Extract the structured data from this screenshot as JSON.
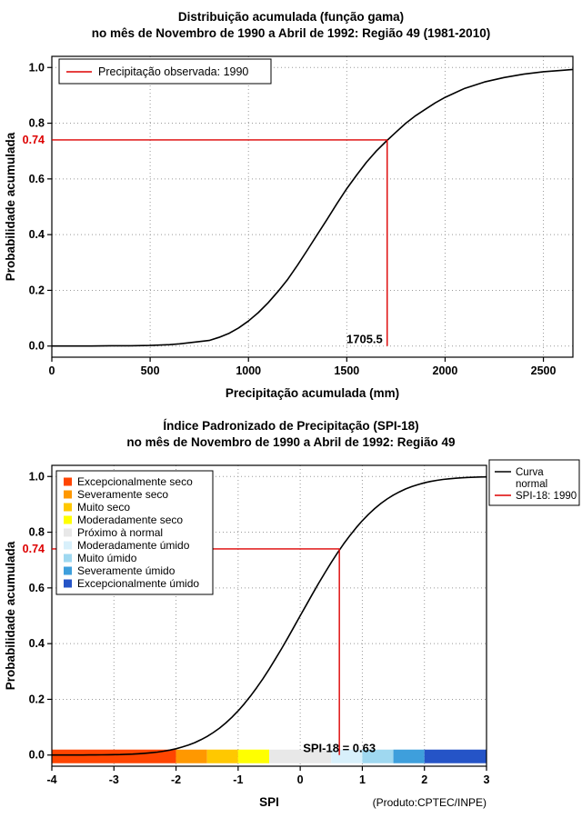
{
  "chart_data": [
    {
      "type": "line",
      "title": "Distribuição acumulada (função gama)",
      "subtitle": "no mês de Novembro de 1990 a Abril de 1992: Região 49 (1981-2010)",
      "xlabel": "Precipitação acumulada (mm)",
      "ylabel": "Probabilidade acumulada",
      "xlim": [
        0,
        2650
      ],
      "ylim": [
        0,
        1
      ],
      "xticks": [
        0,
        500,
        1000,
        1500,
        2000,
        2500
      ],
      "xtick_labels": [
        "0",
        "500",
        "1000",
        "1500",
        "2000",
        "2500"
      ],
      "yticks": [
        0,
        0.2,
        0.4,
        0.6,
        0.8,
        1
      ],
      "ytick_labels": [
        "0.0",
        "0.2",
        "0.4",
        "0.6",
        "0.8",
        "1.0"
      ],
      "grid": true,
      "legend": [
        {
          "label": "Precipitação observada: 1990",
          "color": "#dd0000"
        }
      ],
      "series": [
        {
          "name": "Distribuição gama acumulada",
          "color": "#000000",
          "x": [
            0,
            100,
            200,
            300,
            400,
            500,
            600,
            650,
            700,
            750,
            800,
            850,
            900,
            950,
            1000,
            1050,
            1100,
            1150,
            1200,
            1250,
            1300,
            1350,
            1400,
            1450,
            1500,
            1550,
            1600,
            1650,
            1700,
            1750,
            1800,
            1850,
            1900,
            1950,
            2000,
            2100,
            2200,
            2300,
            2400,
            2500,
            2600,
            2650
          ],
          "y": [
            0,
            0,
            0,
            0.001,
            0.001,
            0.002,
            0.005,
            0.008,
            0.012,
            0.016,
            0.02,
            0.031,
            0.045,
            0.065,
            0.09,
            0.12,
            0.155,
            0.196,
            0.24,
            0.291,
            0.345,
            0.4,
            0.455,
            0.511,
            0.565,
            0.614,
            0.66,
            0.7,
            0.735,
            0.768,
            0.8,
            0.827,
            0.85,
            0.873,
            0.893,
            0.925,
            0.948,
            0.964,
            0.976,
            0.985,
            0.99,
            0.993
          ]
        }
      ],
      "annotation": {
        "x_value": 1705.5,
        "y_value": 0.74,
        "x_label": "1705.5",
        "y_label": "0.74",
        "color": "#dd0000"
      }
    },
    {
      "type": "line",
      "title": "Índice Padronizado de Precipitação (SPI-18)",
      "subtitle": "no mês de Novembro de 1990 a Abril de 1992: Região 49",
      "xlabel": "SPI",
      "ylabel": "Probabilidade acumulada",
      "credit": "(Produto:CPTEC/INPE)",
      "xlim": [
        -4,
        3
      ],
      "ylim": [
        0,
        1
      ],
      "xticks": [
        -4,
        -3,
        -2,
        -1,
        0,
        1,
        2,
        3
      ],
      "xtick_labels": [
        "-4",
        "-3",
        "-2",
        "-1",
        "0",
        "1",
        "2",
        "3"
      ],
      "yticks": [
        0,
        0.2,
        0.4,
        0.6,
        0.8,
        1
      ],
      "ytick_labels": [
        "0.0",
        "0.2",
        "0.4",
        "0.6",
        "0.8",
        "1.0"
      ],
      "grid": true,
      "legend_right": [
        {
          "label_lines": [
            "Curva",
            "normal"
          ],
          "color": "#000000"
        },
        {
          "label_lines": [
            "SPI-18: 1990"
          ],
          "color": "#dd0000"
        }
      ],
      "categories_legend": [
        {
          "label": "Excepcionalmente seco",
          "color": "#ff4500"
        },
        {
          "label": "Severamente seco",
          "color": "#ff9800"
        },
        {
          "label": "Muito seco",
          "color": "#ffc800"
        },
        {
          "label": "Moderadamente seco",
          "color": "#ffff00"
        },
        {
          "label": "Próximo à normal",
          "color": "#e8e8e8"
        },
        {
          "label": "Moderadamente úmido",
          "color": "#d8f0fb"
        },
        {
          "label": "Muito úmido",
          "color": "#9fd8f0"
        },
        {
          "label": "Severamente úmido",
          "color": "#3e9fdc"
        },
        {
          "label": "Excepcionalmente úmido",
          "color": "#2554c7"
        }
      ],
      "category_band": [
        {
          "from": -4,
          "to": -2,
          "color": "#ff4500"
        },
        {
          "from": -2,
          "to": -1.5,
          "color": "#ff9800"
        },
        {
          "from": -1.5,
          "to": -1,
          "color": "#ffc800"
        },
        {
          "from": -1,
          "to": -0.5,
          "color": "#ffff00"
        },
        {
          "from": -0.5,
          "to": 0.5,
          "color": "#e8e8e8"
        },
        {
          "from": 0.5,
          "to": 1,
          "color": "#d8f0fb"
        },
        {
          "from": 1,
          "to": 1.5,
          "color": "#9fd8f0"
        },
        {
          "from": 1.5,
          "to": 2,
          "color": "#3e9fdc"
        },
        {
          "from": 2,
          "to": 3,
          "color": "#2554c7"
        }
      ],
      "series": [
        {
          "name": "Curva normal",
          "color": "#000000",
          "x": [
            -4.0,
            -3.9,
            -3.8,
            -3.7,
            -3.6,
            -3.5,
            -3.4,
            -3.3,
            -3.2,
            -3.1,
            -3.0,
            -2.9,
            -2.8,
            -2.7,
            -2.6,
            -2.5,
            -2.4,
            -2.3,
            -2.2,
            -2.1,
            -2.0,
            -1.9,
            -1.8,
            -1.7,
            -1.6,
            -1.5,
            -1.4,
            -1.3,
            -1.2,
            -1.1,
            -1.0,
            -0.9,
            -0.8,
            -0.7,
            -0.6,
            -0.5,
            -0.4,
            -0.3,
            -0.2,
            -0.1,
            0.0,
            0.1,
            0.2,
            0.3,
            0.4,
            0.5,
            0.6,
            0.7,
            0.8,
            0.9,
            1.0,
            1.1,
            1.2,
            1.3,
            1.4,
            1.5,
            1.6,
            1.7,
            1.8,
            1.9,
            2.0,
            2.1,
            2.2,
            2.3,
            2.4,
            2.5,
            2.6,
            2.7,
            2.8,
            2.9,
            3.0
          ],
          "y": [
            0.0,
            0.0,
            0.0001,
            0.0001,
            0.0002,
            0.0002,
            0.0003,
            0.0005,
            0.0007,
            0.001,
            0.0013,
            0.0019,
            0.0026,
            0.0035,
            0.0047,
            0.0062,
            0.0082,
            0.0107,
            0.0139,
            0.0179,
            0.0228,
            0.0287,
            0.0359,
            0.0446,
            0.0548,
            0.0668,
            0.0808,
            0.0968,
            0.1151,
            0.1357,
            0.1587,
            0.1841,
            0.2119,
            0.242,
            0.2743,
            0.3085,
            0.3446,
            0.3821,
            0.4207,
            0.4602,
            0.5,
            0.5398,
            0.5793,
            0.6179,
            0.6554,
            0.6915,
            0.7257,
            0.758,
            0.7881,
            0.8159,
            0.8413,
            0.8643,
            0.8849,
            0.9032,
            0.9192,
            0.9332,
            0.9452,
            0.9554,
            0.9641,
            0.9713,
            0.9772,
            0.9821,
            0.9861,
            0.9893,
            0.9918,
            0.9938,
            0.9953,
            0.9965,
            0.9974,
            0.9981,
            0.9987
          ]
        }
      ],
      "annotation": {
        "x_value": 0.63,
        "y_value": 0.74,
        "x_label": "SPI-18 = 0.63",
        "y_label": "0.74",
        "color": "#dd0000"
      }
    }
  ]
}
